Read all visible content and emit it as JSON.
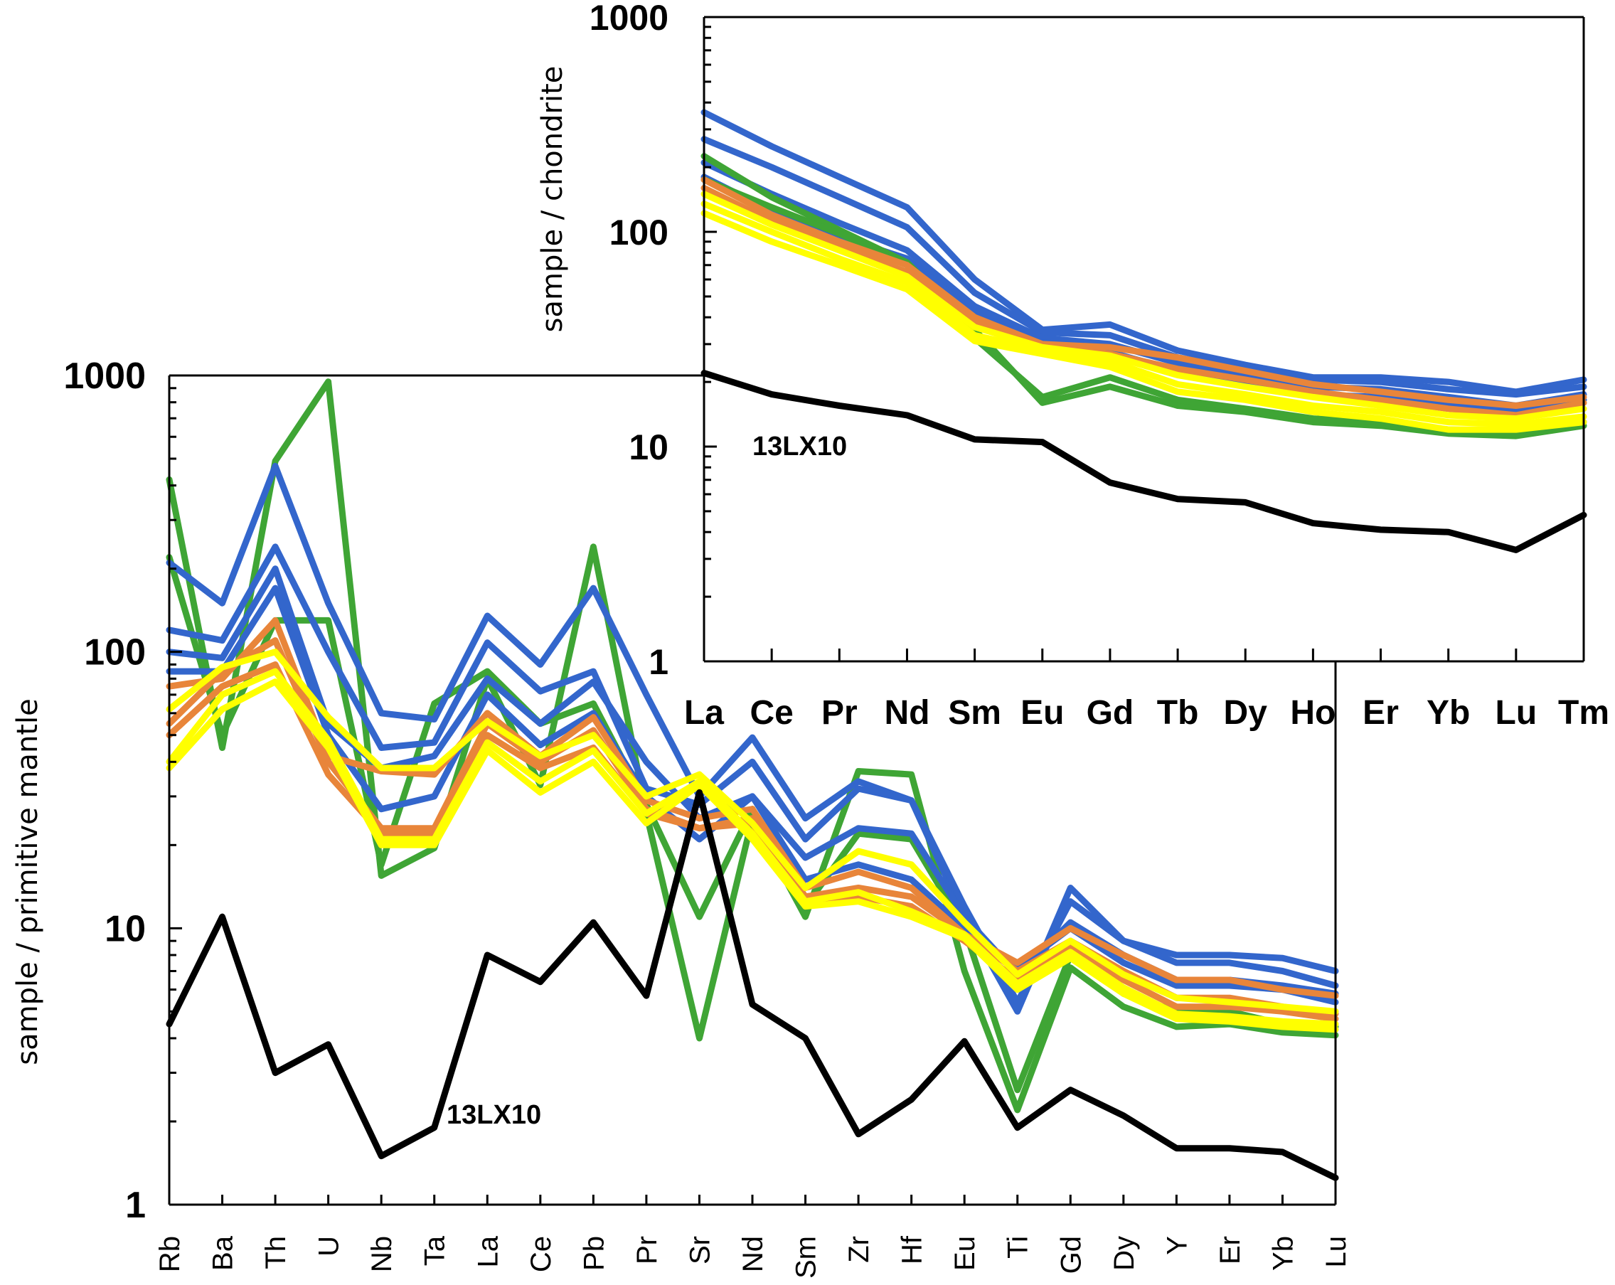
{
  "chart_data": [
    {
      "type": "line",
      "ylabel": "sample / primitive mantle",
      "yscale": "log",
      "ylim": [
        1,
        1000
      ],
      "y_ticks": [
        1,
        10,
        100,
        1000
      ],
      "y_tick_labels": [
        "1",
        "10",
        "100",
        "1000"
      ],
      "categories": [
        "Rb",
        "Ba",
        "Th",
        "U",
        "Nb",
        "Ta",
        "La",
        "Ce",
        "Pb",
        "Pr",
        "Sr",
        "Nd",
        "Sm",
        "Zr",
        "Hf",
        "Eu",
        "Ti",
        "Gd",
        "Dy",
        "Y",
        "Er",
        "Yb",
        "Lu"
      ],
      "annotation": "13LX10",
      "colors": {
        "blue": "#3366cc",
        "green": "#3fa535",
        "orange": "#e8853a",
        "yellow": "#ffff00",
        "black": "#000000"
      },
      "series": [
        {
          "color": "green",
          "values": [
            420,
            45,
            490,
            950,
            15.5,
            19.5,
            80,
            33,
            240,
            26,
            4,
            25,
            11,
            37,
            36,
            7,
            2.2,
            7.2,
            5.2,
            4.4,
            4.5,
            4.2,
            4.1
          ]
        },
        {
          "color": "green",
          "values": [
            220,
            50,
            130,
            130,
            17,
            65,
            85,
            55,
            65,
            28,
            11,
            27,
            12,
            22,
            21,
            10,
            2.6,
            8,
            5.8,
            5,
            5,
            4.5,
            4.4
          ]
        },
        {
          "color": "blue",
          "values": [
            210,
            150,
            470,
            150,
            60,
            57,
            135,
            90,
            170,
            70,
            30,
            49,
            25,
            34,
            29,
            11,
            5,
            14,
            9,
            8,
            8,
            7.8,
            7
          ]
        },
        {
          "color": "blue",
          "values": [
            120,
            110,
            240,
            100,
            45,
            47,
            108,
            72,
            85,
            32,
            28,
            40,
            21,
            32,
            29,
            12,
            5.4,
            12.5,
            9,
            7.5,
            7.5,
            7,
            6.2
          ]
        },
        {
          "color": "blue",
          "values": [
            100,
            95,
            200,
            55,
            38,
            42,
            80,
            55,
            78,
            40,
            25,
            30,
            18,
            23,
            22,
            11,
            6.8,
            10.5,
            8,
            6.5,
            6.5,
            6.2,
            5.8
          ]
        },
        {
          "color": "blue",
          "values": [
            85,
            85,
            170,
            50,
            27,
            30,
            70,
            46,
            60,
            30,
            21,
            30,
            15,
            17,
            15,
            10,
            7.2,
            10,
            7.5,
            6.2,
            6.2,
            6,
            5.4
          ]
        },
        {
          "color": "orange",
          "values": [
            75,
            80,
            130,
            42,
            37,
            36,
            60,
            42,
            58,
            29,
            25,
            27,
            14,
            16,
            14,
            9.5,
            7.5,
            10,
            8,
            6.5,
            6.5,
            6,
            5.7
          ]
        },
        {
          "color": "orange",
          "values": [
            55,
            85,
            110,
            40,
            23,
            23,
            55,
            40,
            52,
            27,
            23,
            25,
            13,
            14,
            13,
            9.5,
            7,
            9,
            7,
            5.6,
            5.6,
            5.2,
            4.9
          ]
        },
        {
          "color": "orange",
          "values": [
            50,
            75,
            90,
            36,
            22,
            22,
            50,
            38,
            45,
            26,
            23,
            24,
            12,
            13,
            12,
            9,
            6.5,
            8.5,
            6.5,
            5.2,
            5.2,
            5,
            4.7
          ]
        },
        {
          "color": "yellow",
          "values": [
            62,
            88,
            100,
            58,
            38,
            38,
            56,
            42,
            50,
            30,
            36,
            24,
            14,
            19,
            17,
            10.5,
            6.8,
            9,
            6.8,
            5.6,
            5.4,
            5.2,
            5
          ]
        },
        {
          "color": "yellow",
          "values": [
            40,
            70,
            85,
            48,
            21,
            21,
            47,
            34,
            44,
            26,
            34,
            22,
            12.5,
            13.5,
            11.5,
            9.5,
            6.3,
            8.2,
            6.1,
            4.9,
            4.8,
            4.6,
            4.5
          ]
        },
        {
          "color": "yellow",
          "values": [
            38,
            62,
            78,
            45,
            20,
            20,
            44,
            31,
            40,
            24,
            33,
            21,
            12,
            12.5,
            11,
            9.2,
            6,
            7.8,
            5.8,
            4.7,
            4.6,
            4.4,
            4.3
          ]
        },
        {
          "color": "black",
          "values": [
            4.5,
            11,
            3,
            3.8,
            1.5,
            1.9,
            8,
            6.4,
            10.5,
            5.7,
            31,
            5.3,
            4,
            1.8,
            2.4,
            3.9,
            1.9,
            2.6,
            2.1,
            1.6,
            1.6,
            1.55,
            1.25
          ]
        }
      ]
    },
    {
      "type": "line",
      "ylabel": "sample / chondrite",
      "yscale": "log",
      "ylim": [
        1,
        1000
      ],
      "y_ticks": [
        1,
        10,
        100,
        1000
      ],
      "y_tick_labels": [
        "1",
        "10",
        "100",
        "1000"
      ],
      "categories": [
        "La",
        "Ce",
        "Pr",
        "Nd",
        "Sm",
        "Eu",
        "Gd",
        "Tb",
        "Dy",
        "Ho",
        "Er",
        "Yb",
        "Lu",
        "Tm"
      ],
      "annotation": "13LX10",
      "colors": {
        "blue": "#3366cc",
        "green": "#3fa535",
        "orange": "#e8853a",
        "yellow": "#ffff00",
        "black": "#000000"
      },
      "series": [
        {
          "color": "blue",
          "values": [
            360,
            250,
            180,
            130,
            60,
            35,
            37,
            28,
            24,
            21,
            21,
            20,
            18,
            20.5
          ]
        },
        {
          "color": "blue",
          "values": [
            270,
            200,
            145,
            105,
            52,
            34,
            33,
            26,
            23,
            20.5,
            20,
            18.5,
            17.5,
            19
          ]
        },
        {
          "color": "blue",
          "values": [
            210,
            150,
            110,
            82,
            45,
            32,
            30,
            24.5,
            21.5,
            19,
            18.5,
            17,
            15.5,
            17.5
          ]
        },
        {
          "color": "blue",
          "values": [
            180,
            125,
            95,
            75,
            42,
            30,
            27.5,
            22.5,
            19.5,
            17.5,
            17,
            16,
            14.5,
            16.5
          ]
        },
        {
          "color": "green",
          "values": [
            225,
            145,
            102,
            72,
            35,
            16,
            19,
            15.5,
            14.5,
            13,
            12.5,
            11.5,
            11.2,
            12.5
          ]
        },
        {
          "color": "green",
          "values": [
            175,
            130,
            98,
            70,
            32,
            17,
            21,
            16.5,
            15,
            13.5,
            13,
            12,
            11.8,
            13
          ]
        },
        {
          "color": "orange",
          "values": [
            175,
            120,
            90,
            70,
            40,
            30,
            29,
            26,
            22.5,
            19.5,
            18,
            16.5,
            15.5,
            17
          ]
        },
        {
          "color": "orange",
          "values": [
            160,
            112,
            85,
            65,
            38,
            29,
            27,
            23,
            20.5,
            18,
            16.5,
            15,
            14,
            16
          ]
        },
        {
          "color": "yellow",
          "values": [
            150,
            108,
            82,
            62,
            36,
            29,
            26.5,
            21.5,
            19,
            17,
            15.5,
            14,
            13.5,
            15
          ]
        },
        {
          "color": "yellow",
          "values": [
            135,
            100,
            75,
            58,
            33,
            28,
            25,
            19.5,
            17.5,
            15.5,
            14.5,
            13,
            12.7,
            13.8
          ]
        },
        {
          "color": "yellow",
          "values": [
            122,
            90,
            70,
            54,
            31,
            27,
            23.5,
            18,
            16.5,
            14.5,
            13.5,
            12,
            12,
            13
          ]
        },
        {
          "color": "black",
          "values": [
            22,
            17.5,
            15.5,
            14,
            10.8,
            10.5,
            6.8,
            5.7,
            5.5,
            4.4,
            4.1,
            4,
            3.3,
            4.8
          ]
        }
      ]
    }
  ]
}
